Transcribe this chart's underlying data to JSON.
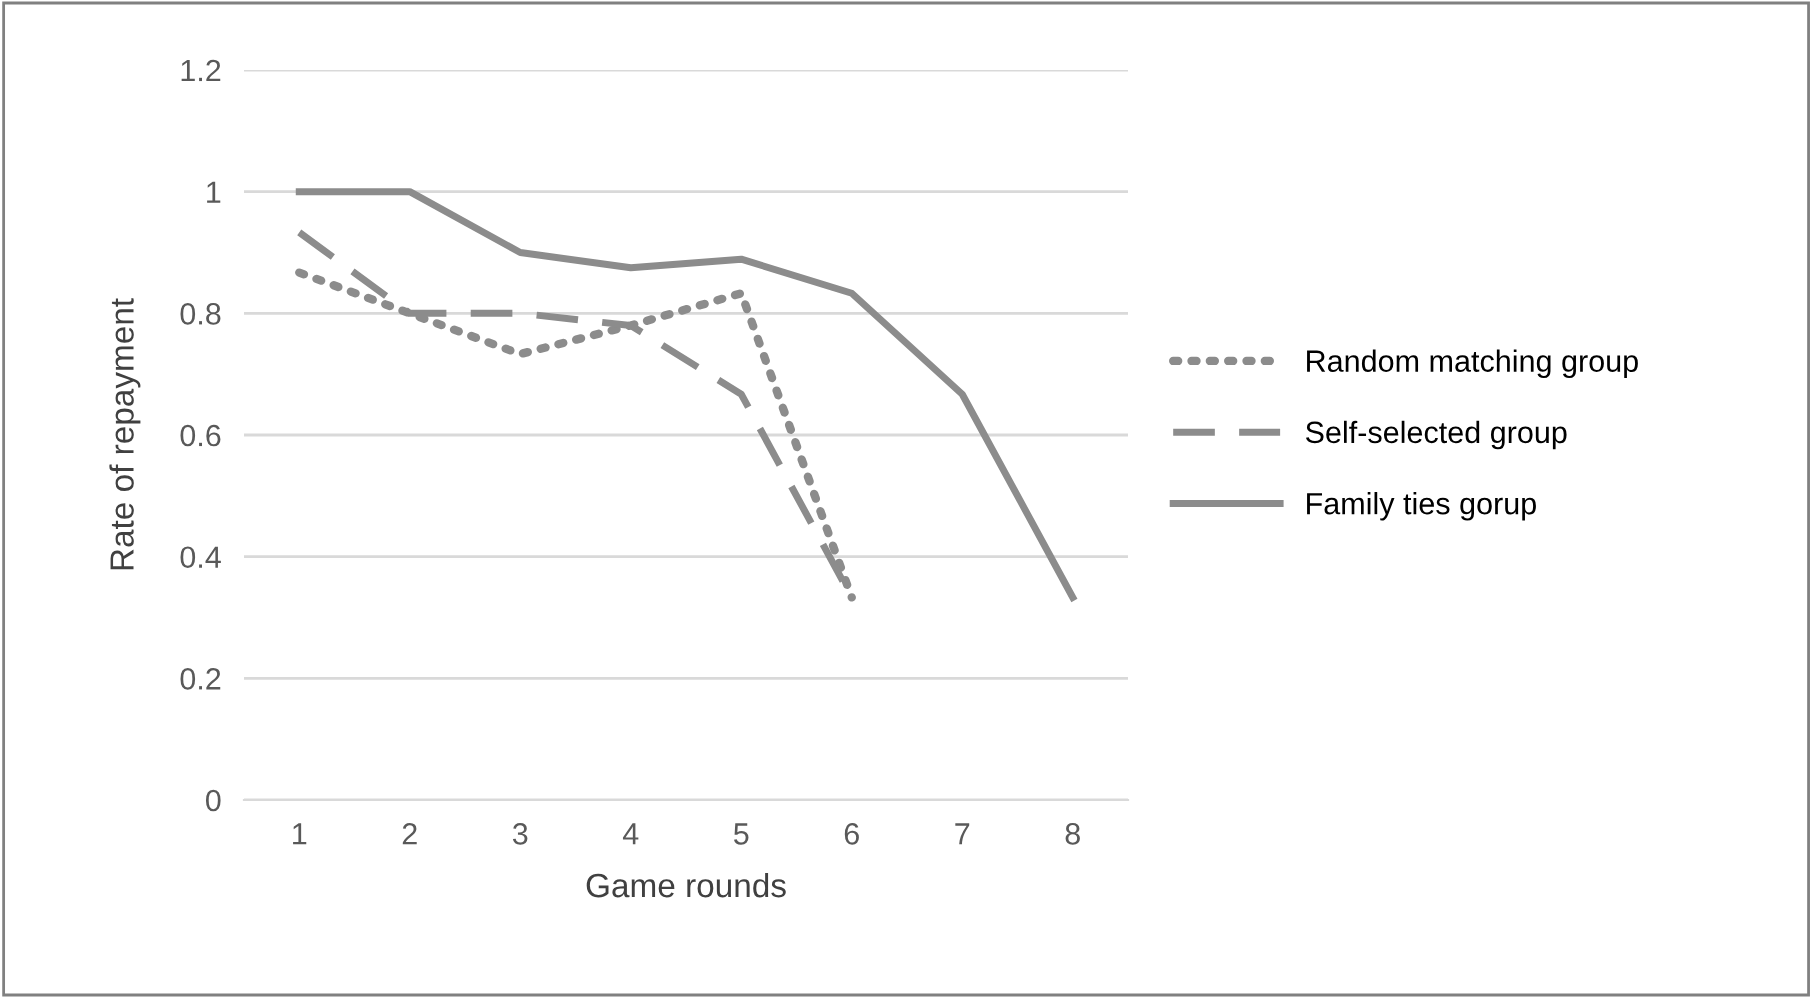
{
  "chart_data": {
    "type": "line",
    "xlabel": "Game rounds",
    "ylabel": "Rate of repayment",
    "categories": [
      "1",
      "2",
      "3",
      "4",
      "5",
      "6",
      "7",
      "8"
    ],
    "series": [
      {
        "name": "Random matching group",
        "color": "#8c8c8c",
        "line_style": "dotted",
        "values": [
          0.867,
          0.8,
          0.733,
          0.78,
          0.833,
          0.333,
          null,
          null
        ]
      },
      {
        "name": "Self-selected group",
        "color": "#8c8c8c",
        "line_style": "dashed",
        "values": [
          0.933,
          0.8,
          0.8,
          0.78,
          0.667,
          0.333,
          null,
          null
        ]
      },
      {
        "name": "Family ties gorup",
        "color": "#8c8c8c",
        "line_style": "solid",
        "values": [
          1.0,
          1.0,
          0.9,
          0.875,
          0.889,
          0.833,
          0.667,
          0.333
        ]
      }
    ],
    "ylim": [
      0,
      1.2
    ],
    "yticks": [
      0,
      0.2,
      0.4,
      0.6,
      0.8,
      1,
      1.2
    ],
    "grid": "y",
    "legend": "right",
    "marker": "none"
  }
}
